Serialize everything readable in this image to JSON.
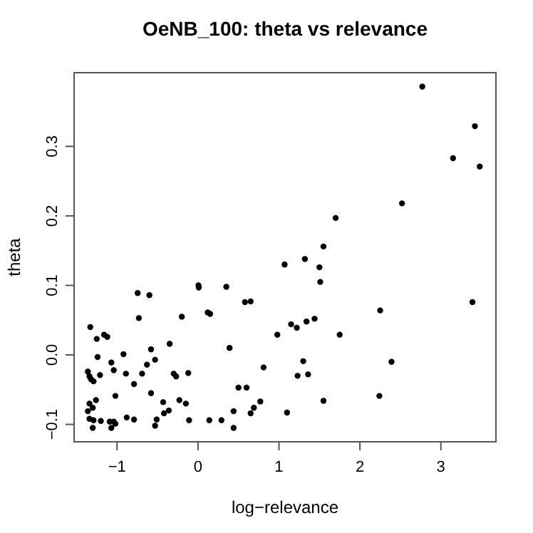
{
  "chart_data": {
    "type": "scatter",
    "title": "OeNB_100: theta vs relevance",
    "xlabel": "log−relevance",
    "ylabel": "theta",
    "marker": "circle",
    "xlim": [
      -1.53,
      3.68
    ],
    "ylim": [
      -0.125,
      0.406
    ],
    "xticks": [
      {
        "value": -1,
        "label": "−1"
      },
      0,
      1,
      2,
      3
    ],
    "yticks": [
      {
        "value": -0.1,
        "label": "−0.1"
      },
      {
        "value": 0,
        "label": "0.0"
      },
      0.1,
      0.2,
      0.3
    ],
    "series": [
      {
        "color": "#000000",
        "x": [
          2.77,
          3.42,
          3.15,
          3.48,
          2.52,
          1.7,
          1.55,
          1.32,
          1.07,
          1.5,
          1.51,
          3.39,
          2.25,
          1.15,
          1.22,
          1.34,
          1.44,
          1.75,
          1.3,
          2.39,
          1.23,
          1.36,
          1.55,
          2.24,
          1.1,
          -0.745,
          -0.6,
          0.006,
          0.01,
          0.35,
          -0.73,
          -0.2,
          0.12,
          0.15,
          0.58,
          0.65,
          -1.33,
          -1.25,
          -1.16,
          -1.12,
          0.98,
          -1.24,
          -0.92,
          -0.35,
          -0.58,
          -0.53,
          -0.63,
          -1.07,
          -1.04,
          0.39,
          -1.36,
          -1.34,
          -1.32,
          -1.29,
          -1.21,
          -0.89,
          -0.69,
          -0.3,
          -0.27,
          -0.12,
          -0.79,
          0.81,
          0.5,
          0.6,
          -0.58,
          -1.02,
          -1.26,
          -1.34,
          -0.43,
          -0.23,
          -0.15,
          0.77,
          0.69,
          0.65,
          0.44,
          -1.36,
          -1.3,
          -0.36,
          -0.42,
          -1.34,
          -1.29,
          -1.2,
          -1.09,
          -1.04,
          -1.02,
          -0.88,
          -0.79,
          -0.51,
          -0.53,
          -0.11,
          0.14,
          0.29,
          0.44,
          -1.3,
          -1.07
        ],
        "values": [
          0.386,
          0.329,
          0.283,
          0.271,
          0.218,
          0.197,
          0.156,
          0.138,
          0.13,
          0.126,
          0.105,
          0.076,
          0.064,
          0.044,
          0.039,
          0.048,
          0.052,
          0.029,
          -0.009,
          -0.01,
          -0.03,
          -0.028,
          -0.066,
          -0.059,
          -0.083,
          0.089,
          0.086,
          0.1,
          0.097,
          0.098,
          0.053,
          0.055,
          0.061,
          0.059,
          0.076,
          0.077,
          0.04,
          0.023,
          0.029,
          0.026,
          0.029,
          -0.003,
          0.001,
          0.016,
          0.008,
          -0.007,
          -0.014,
          -0.011,
          -0.022,
          0.01,
          -0.024,
          -0.031,
          -0.035,
          -0.038,
          -0.029,
          -0.027,
          -0.027,
          -0.027,
          -0.031,
          -0.026,
          -0.042,
          -0.018,
          -0.047,
          -0.047,
          -0.055,
          -0.059,
          -0.065,
          -0.07,
          -0.068,
          -0.065,
          -0.07,
          -0.067,
          -0.076,
          -0.084,
          -0.081,
          -0.081,
          -0.076,
          -0.08,
          -0.084,
          -0.092,
          -0.094,
          -0.095,
          -0.096,
          -0.096,
          -0.099,
          -0.09,
          -0.093,
          -0.093,
          -0.102,
          -0.094,
          -0.094,
          -0.094,
          -0.105,
          -0.105,
          -0.105
        ]
      }
    ]
  }
}
